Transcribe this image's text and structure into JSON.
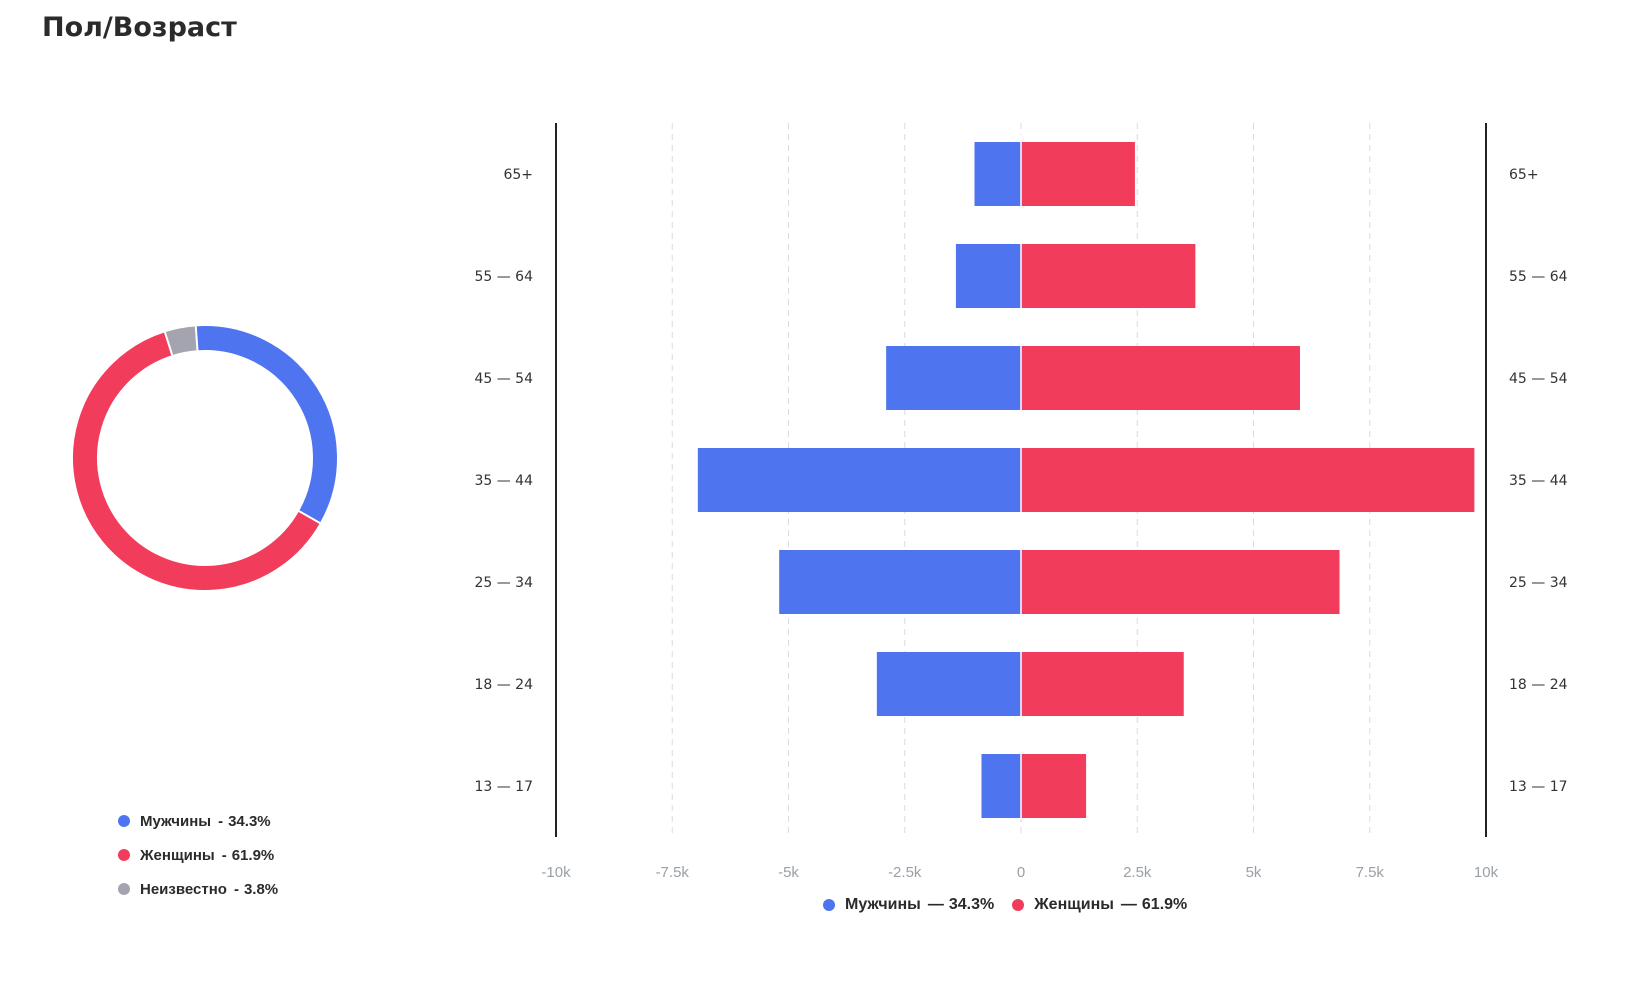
{
  "title": "Пол/Возраст",
  "colors": {
    "male": "#4f74f0",
    "female": "#f23c5c",
    "unknown": "#a4a4b0"
  },
  "chart_data": [
    {
      "type": "pie",
      "variant": "donut",
      "labels": [
        "Мужчины",
        "Женщины",
        "Неизвестно"
      ],
      "values": [
        34.3,
        61.9,
        3.8
      ],
      "legend": [
        {
          "name": "Мужчины",
          "sep": "-",
          "value": "34.3%"
        },
        {
          "name": "Женщины",
          "sep": "-",
          "value": "61.9%"
        },
        {
          "name": "Неизвестно",
          "sep": "-",
          "value": "3.8%"
        }
      ]
    },
    {
      "type": "bar",
      "orientation": "horizontal",
      "stacking": "diverging",
      "categories": [
        "65+",
        "55 — 64",
        "45 — 54",
        "35 — 44",
        "25 — 34",
        "18 — 24",
        "13 — 17"
      ],
      "series": [
        {
          "name": "Мужчины",
          "values": [
            -1000,
            -1400,
            -2900,
            -6950,
            -5200,
            -3100,
            -850
          ]
        },
        {
          "name": "Женщины",
          "values": [
            2450,
            3750,
            6000,
            9750,
            6850,
            3500,
            1400
          ]
        }
      ],
      "xlim": [
        -10000,
        10000
      ],
      "xticks": [
        "-10k",
        "-7.5k",
        "-5k",
        "-2.5k",
        "0",
        "2.5k",
        "5k",
        "7.5k",
        "10k"
      ],
      "grid": "vertical dashed",
      "legend_position": "bottom",
      "legend": [
        {
          "name": "Мужчины",
          "sep": "—",
          "value": "34.3%"
        },
        {
          "name": "Женщины",
          "sep": "—",
          "value": "61.9%"
        }
      ]
    }
  ]
}
